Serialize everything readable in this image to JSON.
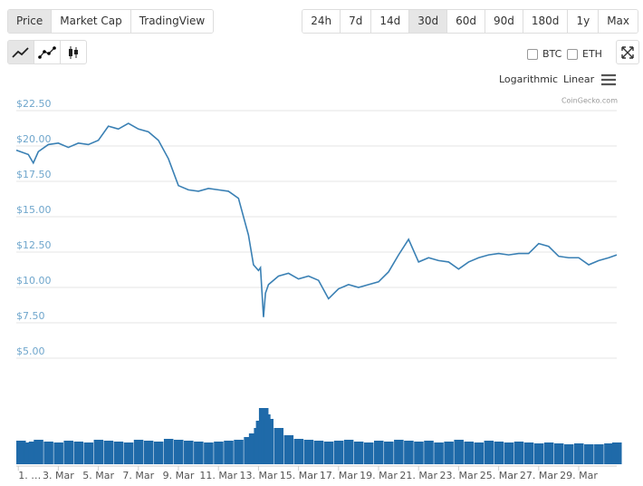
{
  "tabs": [
    "Price",
    "Market Cap",
    "TradingView"
  ],
  "ranges": [
    "24h",
    "7d",
    "14d",
    "30d",
    "60d",
    "90d",
    "180d",
    "1y",
    "Max"
  ],
  "compare": [
    "BTC",
    "ETH"
  ],
  "scales": [
    "Logarithmic",
    "Linear"
  ],
  "credit": "CoinGecko.com",
  "chart_data": {
    "type": "line",
    "x": [
      0.9,
      1.5,
      1.75,
      2,
      2.5,
      3,
      3.5,
      4,
      4.5,
      5,
      5.5,
      6,
      6.5,
      7,
      7.5,
      8,
      8.5,
      9,
      9.5,
      10,
      10.5,
      11,
      11.5,
      12,
      12.5,
      12.75,
      13,
      13.1,
      13.25,
      13.35,
      13.5,
      14,
      14.5,
      15,
      15.5,
      16,
      16.5,
      17,
      17.5,
      18,
      18.5,
      19,
      19.5,
      20,
      20.5,
      21,
      21.5,
      22,
      22.5,
      23,
      23.5,
      24,
      24.5,
      25,
      25.5,
      26,
      26.5,
      27,
      27.5,
      28,
      28.5,
      29,
      29.5,
      30,
      30.5,
      30.9
    ],
    "series": [
      {
        "name": "Price",
        "color": "#3a80b4",
        "values": [
          19.7,
          19.4,
          18.8,
          19.6,
          20.1,
          20.2,
          19.9,
          20.2,
          20.1,
          20.4,
          21.4,
          21.2,
          21.6,
          21.2,
          21.0,
          20.4,
          19.1,
          17.2,
          16.9,
          16.8,
          17.0,
          16.9,
          16.8,
          16.3,
          13.7,
          11.6,
          11.2,
          11.4,
          7.9,
          9.6,
          10.2,
          10.8,
          11.0,
          10.6,
          10.8,
          10.5,
          9.2,
          9.9,
          10.2,
          10.0,
          10.2,
          10.4,
          11.1,
          12.3,
          13.4,
          11.8,
          12.1,
          11.9,
          11.8,
          11.3,
          11.8,
          12.1,
          12.3,
          12.4,
          12.3,
          12.4,
          12.4,
          13.1,
          12.9,
          12.2,
          12.1,
          12.1,
          11.6,
          11.9,
          12.1,
          12.3
        ]
      },
      {
        "name": "Volume",
        "color": "#1f6aa9",
        "axis": "y2",
        "values": [
          26,
          24,
          25,
          27,
          25,
          24,
          26,
          25,
          24,
          27,
          26,
          25,
          24,
          27,
          26,
          25,
          28,
          27,
          26,
          25,
          24,
          25,
          26,
          27,
          30,
          34,
          40,
          48,
          62,
          55,
          50,
          40,
          32,
          28,
          27,
          26,
          25,
          26,
          27,
          25,
          24,
          26,
          25,
          27,
          26,
          25,
          26,
          24,
          25,
          27,
          25,
          24,
          26,
          25,
          24,
          25,
          24,
          23,
          24,
          23,
          22,
          23,
          22,
          22,
          23,
          24
        ]
      }
    ],
    "xlim": [
      0.9,
      30.9
    ],
    "xticks": [
      {
        "value": 1,
        "label": "1. …"
      },
      {
        "value": 3,
        "label": "3. Mar"
      },
      {
        "value": 5,
        "label": "5. Mar"
      },
      {
        "value": 7,
        "label": "7. Mar"
      },
      {
        "value": 9,
        "label": "9. Mar"
      },
      {
        "value": 11,
        "label": "11. Mar"
      },
      {
        "value": 13,
        "label": "13. Mar"
      },
      {
        "value": 15,
        "label": "15. Mar"
      },
      {
        "value": 17,
        "label": "17. Mar"
      },
      {
        "value": 19,
        "label": "19. Mar"
      },
      {
        "value": 21,
        "label": "21. Mar"
      },
      {
        "value": 23,
        "label": "23. Mar"
      },
      {
        "value": 25,
        "label": "25. Mar"
      },
      {
        "value": 27,
        "label": "27. Mar"
      },
      {
        "value": 29,
        "label": "29. Mar"
      }
    ],
    "ylim": [
      5,
      22.5
    ],
    "yticks": [
      {
        "value": 5,
        "label": "$5.00"
      },
      {
        "value": 7.5,
        "label": "$7.50"
      },
      {
        "value": 10,
        "label": "$10.00"
      },
      {
        "value": 12.5,
        "label": "$12.50"
      },
      {
        "value": 15,
        "label": "$15.00"
      },
      {
        "value": 17.5,
        "label": "$17.50"
      },
      {
        "value": 20,
        "label": "$20.00"
      },
      {
        "value": 22.5,
        "label": "$22.50"
      }
    ],
    "y2lim": [
      0,
      70
    ],
    "grid": true
  }
}
